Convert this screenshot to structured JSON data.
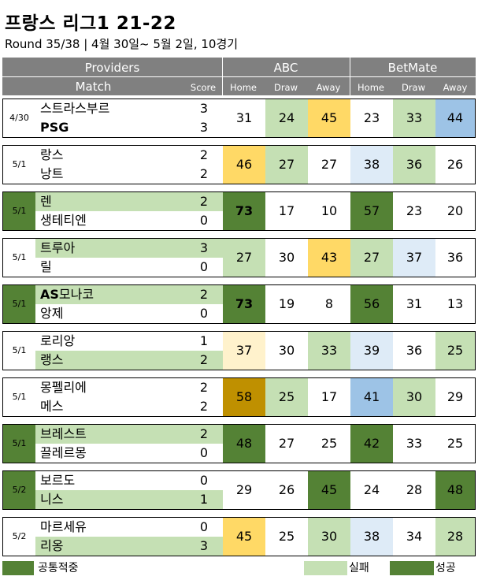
{
  "title": "프랑스 리그1 21-22",
  "subtitle": "Round 35/38  | 4월 30일~ 5월 2일, 10경기",
  "header": {
    "providers": "Providers",
    "match": "Match",
    "score": "Score",
    "abc": "ABC",
    "betmate": "BetMate",
    "home": "Home",
    "draw": "Draw",
    "away": "Away"
  },
  "colors": {
    "dark_green": "#548235",
    "light_green": "#c5e0b4",
    "yellow": "#ffd966",
    "light_yellow": "#fff2cc",
    "blue": "#9dc3e6",
    "light_blue": "#deebf7",
    "gold": "#bf9000",
    "header_gray": "#808080"
  },
  "matches": [
    {
      "date": "4/30",
      "date_bg": "",
      "home": {
        "name": "스트라스부르",
        "score": "3",
        "bold": false,
        "bg": ""
      },
      "away": {
        "name": "PSG",
        "score": "3",
        "bold": true,
        "bg": ""
      },
      "abc": [
        {
          "v": "31",
          "bg": ""
        },
        {
          "v": "24",
          "bg": "light_green"
        },
        {
          "v": "45",
          "bg": "yellow"
        }
      ],
      "betmate": [
        {
          "v": "23",
          "bg": ""
        },
        {
          "v": "33",
          "bg": "light_green"
        },
        {
          "v": "44",
          "bg": "blue"
        }
      ]
    },
    {
      "date": "5/1",
      "date_bg": "",
      "home": {
        "name": "랑스",
        "score": "2",
        "bold": false,
        "bg": ""
      },
      "away": {
        "name": "낭트",
        "score": "2",
        "bold": false,
        "bg": ""
      },
      "abc": [
        {
          "v": "46",
          "bg": "yellow"
        },
        {
          "v": "27",
          "bg": "light_green"
        },
        {
          "v": "27",
          "bg": ""
        }
      ],
      "betmate": [
        {
          "v": "38",
          "bg": "light_blue"
        },
        {
          "v": "36",
          "bg": "light_green"
        },
        {
          "v": "26",
          "bg": ""
        }
      ]
    },
    {
      "date": "5/1",
      "date_bg": "dark_green",
      "home": {
        "name": "렌",
        "score": "2",
        "bold": false,
        "bg": "light_green"
      },
      "away": {
        "name": "생테티엔",
        "score": "0",
        "bold": false,
        "bg": ""
      },
      "abc": [
        {
          "v": "73",
          "bg": "dark_green",
          "bold": true
        },
        {
          "v": "17",
          "bg": ""
        },
        {
          "v": "10",
          "bg": ""
        }
      ],
      "betmate": [
        {
          "v": "57",
          "bg": "dark_green"
        },
        {
          "v": "23",
          "bg": ""
        },
        {
          "v": "20",
          "bg": ""
        }
      ]
    },
    {
      "date": "5/1",
      "date_bg": "",
      "home": {
        "name": "트루아",
        "score": "3",
        "bold": false,
        "bg": "light_green"
      },
      "away": {
        "name": "릴",
        "score": "0",
        "bold": false,
        "bg": ""
      },
      "abc": [
        {
          "v": "27",
          "bg": "light_green"
        },
        {
          "v": "30",
          "bg": ""
        },
        {
          "v": "43",
          "bg": "yellow"
        }
      ],
      "betmate": [
        {
          "v": "27",
          "bg": "light_green"
        },
        {
          "v": "37",
          "bg": "light_blue"
        },
        {
          "v": "36",
          "bg": ""
        }
      ]
    },
    {
      "date": "5/1",
      "date_bg": "dark_green",
      "home": {
        "name": "AS모나코",
        "score": "2",
        "bold": false,
        "bold_prefix": "AS",
        "bg": "light_green"
      },
      "away": {
        "name": "앙제",
        "score": "0",
        "bold": false,
        "bg": ""
      },
      "abc": [
        {
          "v": "73",
          "bg": "dark_green",
          "bold": true
        },
        {
          "v": "19",
          "bg": ""
        },
        {
          "v": "8",
          "bg": ""
        }
      ],
      "betmate": [
        {
          "v": "56",
          "bg": "dark_green"
        },
        {
          "v": "31",
          "bg": ""
        },
        {
          "v": "13",
          "bg": ""
        }
      ]
    },
    {
      "date": "5/1",
      "date_bg": "",
      "home": {
        "name": "로리앙",
        "score": "1",
        "bold": false,
        "bg": ""
      },
      "away": {
        "name": "랭스",
        "score": "2",
        "bold": false,
        "bg": "light_green"
      },
      "abc": [
        {
          "v": "37",
          "bg": "light_yellow"
        },
        {
          "v": "30",
          "bg": ""
        },
        {
          "v": "33",
          "bg": "light_green"
        }
      ],
      "betmate": [
        {
          "v": "39",
          "bg": "light_blue"
        },
        {
          "v": "36",
          "bg": ""
        },
        {
          "v": "25",
          "bg": "light_green"
        }
      ]
    },
    {
      "date": "5/1",
      "date_bg": "",
      "home": {
        "name": "몽펠리에",
        "score": "2",
        "bold": false,
        "bg": ""
      },
      "away": {
        "name": "메스",
        "score": "2",
        "bold": false,
        "bg": ""
      },
      "abc": [
        {
          "v": "58",
          "bg": "gold"
        },
        {
          "v": "25",
          "bg": "light_green"
        },
        {
          "v": "17",
          "bg": ""
        }
      ],
      "betmate": [
        {
          "v": "41",
          "bg": "blue"
        },
        {
          "v": "30",
          "bg": "light_green"
        },
        {
          "v": "29",
          "bg": ""
        }
      ]
    },
    {
      "date": "5/1",
      "date_bg": "dark_green",
      "home": {
        "name": "브레스트",
        "score": "2",
        "bold": false,
        "bg": "light_green"
      },
      "away": {
        "name": "끌레르몽",
        "score": "0",
        "bold": false,
        "bg": ""
      },
      "abc": [
        {
          "v": "48",
          "bg": "dark_green"
        },
        {
          "v": "27",
          "bg": ""
        },
        {
          "v": "25",
          "bg": ""
        }
      ],
      "betmate": [
        {
          "v": "42",
          "bg": "dark_green"
        },
        {
          "v": "33",
          "bg": ""
        },
        {
          "v": "25",
          "bg": ""
        }
      ]
    },
    {
      "date": "5/2",
      "date_bg": "dark_green",
      "home": {
        "name": "보르도",
        "score": "0",
        "bold": false,
        "bg": ""
      },
      "away": {
        "name": "니스",
        "score": "1",
        "bold": false,
        "bg": "light_green"
      },
      "abc": [
        {
          "v": "29",
          "bg": ""
        },
        {
          "v": "26",
          "bg": ""
        },
        {
          "v": "45",
          "bg": "dark_green"
        }
      ],
      "betmate": [
        {
          "v": "24",
          "bg": ""
        },
        {
          "v": "28",
          "bg": ""
        },
        {
          "v": "48",
          "bg": "dark_green"
        }
      ]
    },
    {
      "date": "5/2",
      "date_bg": "",
      "home": {
        "name": "마르세유",
        "score": "0",
        "bold": false,
        "bg": ""
      },
      "away": {
        "name": "리옹",
        "score": "3",
        "bold": false,
        "bg": "light_green"
      },
      "abc": [
        {
          "v": "45",
          "bg": "yellow"
        },
        {
          "v": "25",
          "bg": ""
        },
        {
          "v": "30",
          "bg": "light_green"
        }
      ],
      "betmate": [
        {
          "v": "38",
          "bg": "light_blue"
        },
        {
          "v": "34",
          "bg": ""
        },
        {
          "v": "28",
          "bg": "light_green"
        }
      ]
    }
  ],
  "legend": {
    "common_hit": "공통적중",
    "fail": "실패",
    "success": "성공"
  }
}
